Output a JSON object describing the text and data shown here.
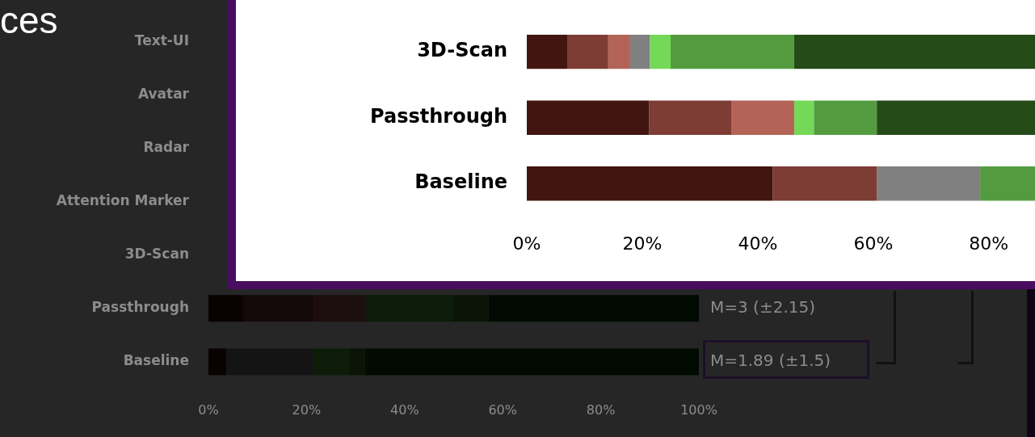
{
  "chart_data": [
    {
      "type": "bar",
      "orientation": "horizontal",
      "stacked": true,
      "categories": [
        "Text-UI",
        "Avatar",
        "Radar",
        "Attention Marker",
        "3D-Scan",
        "Passthrough",
        "Baseline"
      ],
      "series": [
        {
          "color": "#0a0202",
          "values": [
            null,
            null,
            null,
            null,
            null,
            7.1,
            3.6
          ]
        },
        {
          "color": "#130909",
          "values": [
            null,
            null,
            null,
            null,
            null,
            14.3,
            null
          ]
        },
        {
          "color": "#1b0e0c",
          "values": [
            null,
            null,
            null,
            null,
            null,
            10.5,
            null
          ]
        },
        {
          "color": "#141414",
          "values": [
            null,
            null,
            null,
            null,
            null,
            null,
            17.8
          ]
        },
        {
          "color": "#0c1c09",
          "values": [
            null,
            null,
            null,
            null,
            null,
            18.0,
            7.2
          ]
        },
        {
          "color": "#0a1507",
          "values": [
            null,
            null,
            null,
            null,
            null,
            7.2,
            3.3
          ]
        },
        {
          "color": "#010b01",
          "values": [
            null,
            null,
            null,
            null,
            null,
            42.9,
            68.1
          ]
        }
      ],
      "xlim": [
        0,
        100
      ],
      "xticks": [
        {
          "value": 0,
          "label": "0%"
        },
        {
          "value": 20,
          "label": "20%"
        },
        {
          "value": 40,
          "label": "40%"
        },
        {
          "value": 60,
          "label": "60%"
        },
        {
          "value": 80,
          "label": "80%"
        },
        {
          "value": 100,
          "label": "100%"
        }
      ],
      "annotations": [
        "ces",
        {
          "text": "M=3 (±2.15)",
          "x": 100,
          "y": "Passthrough"
        },
        {
          "text": "M=1.89 (±1.5)",
          "x": 100,
          "y": "Baseline"
        }
      ]
    },
    {
      "type": "bar",
      "orientation": "horizontal",
      "stacked": true,
      "categories": [
        "3D-Scan",
        "Passthrough",
        "Baseline"
      ],
      "series": [
        {
          "color": "#431510",
          "values": [
            7.0,
            21.2,
            42.6
          ]
        },
        {
          "color": "#7d3c34",
          "values": [
            7.1,
            14.2,
            18.0
          ]
        },
        {
          "color": "#b36457",
          "values": [
            3.8,
            10.9,
            null
          ]
        },
        {
          "color": "#808080",
          "values": [
            3.4,
            null,
            17.9
          ]
        },
        {
          "color": "#74d957",
          "values": [
            3.6,
            3.4,
            null
          ]
        },
        {
          "color": "#549b40",
          "values": [
            21.4,
            10.9,
            9.5
          ]
        },
        {
          "color": "#244b18",
          "values": [
            41.7,
            27.4,
            null
          ]
        }
      ],
      "xlim": [
        0,
        88
      ],
      "xticks": [
        {
          "value": 0,
          "label": "0%"
        },
        {
          "value": 20,
          "label": "20%"
        },
        {
          "value": 40,
          "label": "40%"
        },
        {
          "value": 60,
          "label": "60%"
        },
        {
          "value": 80,
          "label": "80%"
        }
      ]
    }
  ]
}
